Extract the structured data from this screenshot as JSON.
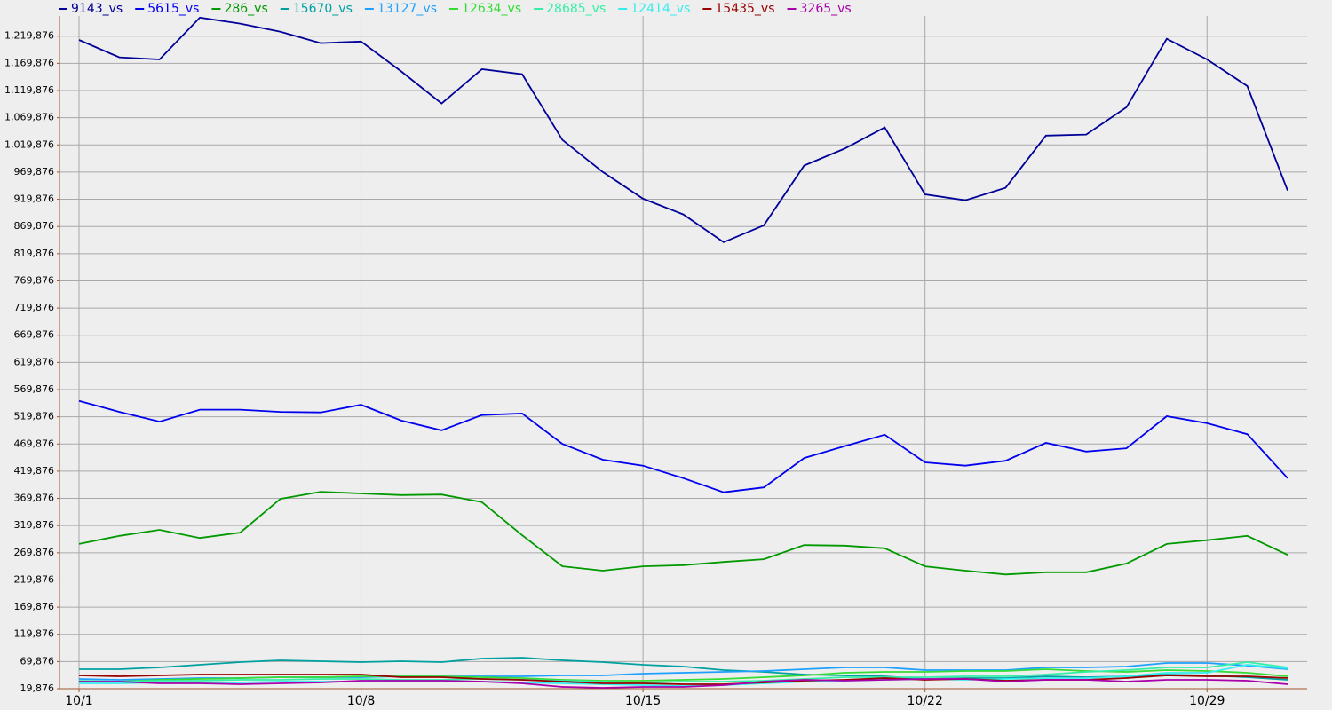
{
  "chart_data": {
    "type": "line",
    "categories": [
      "10/1",
      null,
      null,
      null,
      null,
      null,
      null,
      "10/8",
      null,
      null,
      null,
      null,
      null,
      null,
      "10/15",
      null,
      null,
      null,
      null,
      null,
      null,
      "10/22",
      null,
      null,
      null,
      null,
      null,
      null,
      "10/29",
      null,
      null
    ],
    "ylim": [
      19876,
      1257000
    ],
    "yticks": [
      {
        "value": 19876,
        "label": "19,876"
      },
      {
        "value": 69876,
        "label": "69,876"
      },
      {
        "value": 119876,
        "label": "119,876"
      },
      {
        "value": 169876,
        "label": "169,876"
      },
      {
        "value": 219876,
        "label": "219,876"
      },
      {
        "value": 269876,
        "label": "269,876"
      },
      {
        "value": 319876,
        "label": "319,876"
      },
      {
        "value": 369876,
        "label": "369,876"
      },
      {
        "value": 419876,
        "label": "419,876"
      },
      {
        "value": 469876,
        "label": "469,876"
      },
      {
        "value": 519876,
        "label": "519,876"
      },
      {
        "value": 569876,
        "label": "569,876"
      },
      {
        "value": 619876,
        "label": "619,876"
      },
      {
        "value": 669876,
        "label": "669,876"
      },
      {
        "value": 719876,
        "label": "719,876"
      },
      {
        "value": 769876,
        "label": "769,876"
      },
      {
        "value": 819876,
        "label": "819,876"
      },
      {
        "value": 869876,
        "label": "869,876"
      },
      {
        "value": 919876,
        "label": "919,876"
      },
      {
        "value": 969876,
        "label": "969,876"
      },
      {
        "value": 1019876,
        "label": "1,019,876"
      },
      {
        "value": 1069876,
        "label": "1,069,876"
      },
      {
        "value": 1119876,
        "label": "1,119,876"
      },
      {
        "value": 1169876,
        "label": "1,169,876"
      },
      {
        "value": 1219876,
        "label": "1,219,876"
      }
    ],
    "grid": true,
    "series": [
      {
        "name": "9143_vs",
        "color": "#000099",
        "values": [
          1213000,
          1181000,
          1177000,
          1254000,
          1243000,
          1228000,
          1207000,
          1210000,
          1155000,
          1096000,
          1159000,
          1150000,
          1029000,
          970000,
          921000,
          892000,
          841000,
          872000,
          982000,
          1013000,
          1052000,
          929000,
          918000,
          941000,
          1037000,
          1039000,
          1089000,
          1215000,
          1177000,
          1128000,
          936000
        ]
      },
      {
        "name": "5615_vs",
        "color": "#0000ee",
        "values": [
          549000,
          529000,
          511000,
          533000,
          533000,
          529000,
          528000,
          542000,
          513000,
          495000,
          523000,
          526000,
          470000,
          441000,
          430000,
          407000,
          381000,
          390000,
          444000,
          466000,
          487000,
          436000,
          430000,
          439000,
          472000,
          456000,
          462000,
          521000,
          508000,
          488000,
          407000
        ]
      },
      {
        "name": "286_vs",
        "color": "#009900",
        "values": [
          286000,
          301000,
          312000,
          297000,
          307000,
          369000,
          382000,
          379000,
          376000,
          377000,
          363000,
          302000,
          245000,
          237000,
          245000,
          247000,
          253000,
          258000,
          284000,
          283000,
          278000,
          245000,
          237000,
          230000,
          234000,
          234000,
          250000,
          286000,
          293000,
          301000,
          266000
        ]
      },
      {
        "name": "15670_vs",
        "color": "#00a0a0",
        "values": [
          55800,
          55800,
          59100,
          64000,
          68900,
          72100,
          70500,
          68900,
          70500,
          68900,
          75400,
          77000,
          72100,
          68900,
          64000,
          60700,
          54200,
          50900,
          46000,
          44400,
          42700,
          37800,
          39500,
          39500,
          42700,
          41100,
          42700,
          46000,
          44400,
          41100,
          36200
        ]
      },
      {
        "name": "13127_vs",
        "color": "#1ea0ff",
        "values": [
          37800,
          36200,
          37800,
          39500,
          39500,
          41100,
          41100,
          41100,
          42700,
          42700,
          42700,
          42700,
          44400,
          44400,
          47600,
          49300,
          50900,
          52500,
          55800,
          59100,
          59100,
          54200,
          54200,
          54200,
          59100,
          59100,
          60700,
          67200,
          67200,
          62300,
          55800
        ]
      },
      {
        "name": "12634_vs",
        "color": "#33dd33",
        "values": [
          33000,
          33000,
          36200,
          37800,
          39500,
          41100,
          41100,
          42700,
          42700,
          42700,
          41100,
          39500,
          36200,
          34600,
          34600,
          36200,
          37800,
          41100,
          44400,
          49300,
          50900,
          50900,
          52500,
          52500,
          55800,
          52500,
          50900,
          54200,
          52500,
          49300,
          42700
        ]
      },
      {
        "name": "28685_vs",
        "color": "#33f0a8",
        "values": [
          34600,
          33000,
          34600,
          34600,
          36200,
          36200,
          37800,
          37800,
          36200,
          36200,
          37800,
          36200,
          34600,
          33000,
          31300,
          33000,
          33000,
          34600,
          37800,
          41100,
          41100,
          41100,
          42700,
          42700,
          46000,
          50900,
          54200,
          59100,
          59100,
          68900,
          59100
        ]
      },
      {
        "name": "12414_vs",
        "color": "#33eeee",
        "values": [
          29700,
          29700,
          31300,
          31300,
          31300,
          33000,
          33000,
          33000,
          33000,
          33000,
          33000,
          31300,
          29700,
          28000,
          26400,
          24800,
          26400,
          29700,
          33000,
          34600,
          36200,
          37800,
          36200,
          37800,
          39500,
          39500,
          42700,
          49300,
          49300,
          64000,
          57400
        ]
      },
      {
        "name": "15435_vs",
        "color": "#990000",
        "values": [
          44400,
          42700,
          44400,
          46000,
          46000,
          46000,
          46000,
          46000,
          41100,
          41100,
          37800,
          36200,
          33000,
          29700,
          29700,
          28000,
          28000,
          31300,
          34600,
          36200,
          39500,
          36200,
          37800,
          34600,
          36200,
          36200,
          39500,
          44400,
          42700,
          42700,
          39500
        ]
      },
      {
        "name": "3265_vs",
        "color": "#aa00aa",
        "values": [
          33000,
          33000,
          29700,
          29700,
          28000,
          29700,
          31300,
          34600,
          34600,
          34600,
          33000,
          29700,
          23100,
          21500,
          23100,
          23100,
          26400,
          33000,
          36200,
          34600,
          36200,
          37800,
          37800,
          33000,
          36200,
          36200,
          33000,
          36200,
          36200,
          34600,
          28000
        ]
      }
    ]
  }
}
